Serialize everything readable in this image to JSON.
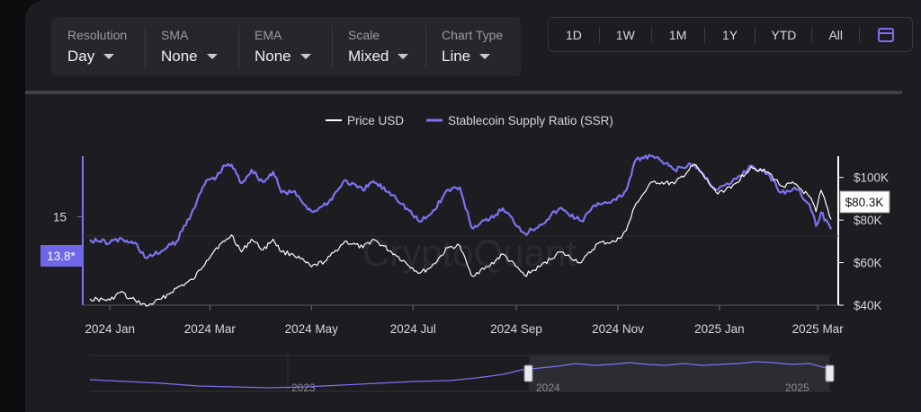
{
  "controls": [
    {
      "label": "Resolution",
      "value": "Day"
    },
    {
      "label": "SMA",
      "value": "None"
    },
    {
      "label": "EMA",
      "value": "None"
    },
    {
      "label": "Scale",
      "value": "Mixed"
    },
    {
      "label": "Chart Type",
      "value": "Line"
    }
  ],
  "ranges": [
    "1D",
    "1W",
    "1M",
    "1Y",
    "YTD",
    "All"
  ],
  "watermark": "CryptoQuant",
  "colors": {
    "price": "#ffffff",
    "ssr": "#7b73f0",
    "background": "#1d1d21"
  },
  "chart_data": {
    "type": "line",
    "legend_position": "top-center",
    "x_ticks": [
      "2024 Jan",
      "2024 Mar",
      "2024 May",
      "2024 Jul",
      "2024 Sep",
      "2024 Nov",
      "2025 Jan",
      "2025 Mar"
    ],
    "x_range": [
      "2023-12-20",
      "2025-03-09"
    ],
    "left_axis": {
      "ticks": [
        "15"
      ],
      "current_value_label": "13.8*",
      "range": [
        6.5,
        20.8
      ]
    },
    "right_axis": {
      "ticks": [
        "$100K",
        "$80K",
        "$60K",
        "$40K"
      ],
      "current_value_label": "$80.3K",
      "range": [
        40000,
        110000
      ]
    },
    "series": [
      {
        "name": "Price USD",
        "axis": "right",
        "color": "#ffffff",
        "x": [
          "2023-12-20",
          "2024-01-01",
          "2024-01-08",
          "2024-01-12",
          "2024-01-16",
          "2024-01-23",
          "2024-02-01",
          "2024-02-10",
          "2024-02-20",
          "2024-02-28",
          "2024-03-05",
          "2024-03-10",
          "2024-03-14",
          "2024-03-20",
          "2024-03-26",
          "2024-04-02",
          "2024-04-08",
          "2024-04-13",
          "2024-04-20",
          "2024-05-01",
          "2024-05-10",
          "2024-05-21",
          "2024-06-01",
          "2024-06-07",
          "2024-06-20",
          "2024-07-05",
          "2024-07-12",
          "2024-07-22",
          "2024-07-29",
          "2024-08-05",
          "2024-08-15",
          "2024-08-24",
          "2024-09-06",
          "2024-09-15",
          "2024-09-27",
          "2024-10-10",
          "2024-10-20",
          "2024-10-31",
          "2024-11-06",
          "2024-11-12",
          "2024-11-22",
          "2024-12-05",
          "2024-12-17",
          "2024-12-30",
          "2025-01-08",
          "2025-01-20",
          "2025-01-31",
          "2025-02-07",
          "2025-02-15",
          "2025-02-24",
          "2025-02-28",
          "2025-03-03",
          "2025-03-09"
        ],
        "values": [
          43000,
          42300,
          46500,
          43000,
          42500,
          39500,
          43000,
          48000,
          52000,
          61000,
          67000,
          70000,
          73000,
          65000,
          71000,
          66000,
          71000,
          65000,
          64000,
          58000,
          61000,
          70000,
          67000,
          71000,
          64000,
          55000,
          58000,
          67000,
          68000,
          54000,
          58000,
          64000,
          54000,
          58000,
          65000,
          60000,
          69000,
          70000,
          75000,
          88000,
          98000,
          97000,
          106000,
          93000,
          95000,
          105000,
          102000,
          96000,
          97000,
          91000,
          84000,
          94000,
          80300
        ]
      },
      {
        "name": "Stablecoin Supply Ratio (SSR)",
        "axis": "left",
        "color": "#7b73f0",
        "x": [
          "2023-12-20",
          "2024-01-01",
          "2024-01-08",
          "2024-01-12",
          "2024-01-16",
          "2024-01-23",
          "2024-02-01",
          "2024-02-10",
          "2024-02-20",
          "2024-02-28",
          "2024-03-05",
          "2024-03-10",
          "2024-03-14",
          "2024-03-20",
          "2024-03-26",
          "2024-04-02",
          "2024-04-08",
          "2024-04-13",
          "2024-04-20",
          "2024-05-01",
          "2024-05-10",
          "2024-05-21",
          "2024-06-01",
          "2024-06-07",
          "2024-06-20",
          "2024-07-05",
          "2024-07-12",
          "2024-07-22",
          "2024-07-29",
          "2024-08-05",
          "2024-08-15",
          "2024-08-24",
          "2024-09-06",
          "2024-09-15",
          "2024-09-27",
          "2024-10-10",
          "2024-10-20",
          "2024-10-31",
          "2024-11-06",
          "2024-11-12",
          "2024-11-22",
          "2024-12-05",
          "2024-12-17",
          "2024-12-30",
          "2025-01-08",
          "2025-01-20",
          "2025-01-31",
          "2025-02-07",
          "2025-02-15",
          "2025-02-24",
          "2025-02-28",
          "2025-03-03",
          "2025-03-09"
        ],
        "values": [
          12.8,
          12.5,
          12.9,
          12.5,
          12.5,
          11.0,
          11.7,
          12.6,
          15.7,
          18.5,
          18.8,
          19.9,
          20.0,
          18.2,
          19.5,
          18.3,
          19.3,
          17.3,
          17.4,
          15.5,
          16.1,
          18.5,
          17.5,
          18.4,
          17.0,
          14.5,
          15.3,
          17.6,
          17.8,
          14.0,
          14.6,
          15.8,
          13.4,
          14.2,
          15.8,
          14.6,
          16.3,
          16.6,
          17.5,
          20.5,
          20.8,
          19.5,
          20.0,
          17.6,
          18.2,
          19.9,
          19.0,
          17.3,
          17.8,
          16.2,
          14.1,
          15.4,
          13.8
        ]
      }
    ],
    "navigator": {
      "labels": [
        "2023",
        "2024",
        "2025"
      ]
    }
  }
}
